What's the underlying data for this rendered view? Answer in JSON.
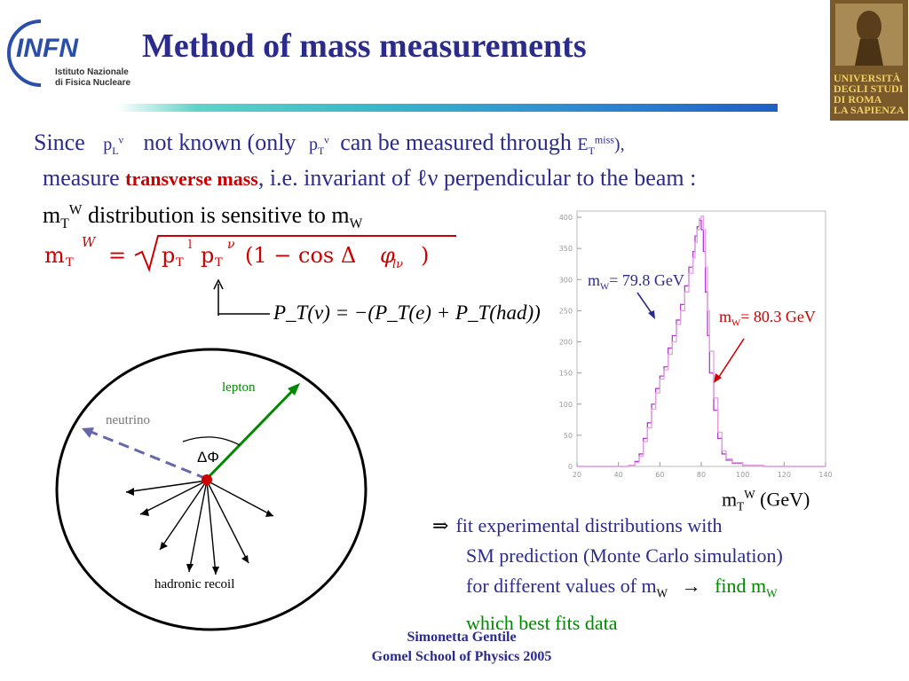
{
  "header": {
    "title": "Method of  mass measurements",
    "infn_logo_text": [
      "INFN",
      "Istituto Nazionale",
      "di Fisica Nucleare"
    ],
    "university_logo_text": [
      "UNIVERSITÀ",
      "DEGLI STUDI",
      "DI ROMA",
      "LA SAPIENZA"
    ]
  },
  "text": {
    "since": "Since",
    "not_known": "not known  (only",
    "can_be_measured": "can be measured through",
    "measure": "measure",
    "transverse_mass": "transverse mass",
    "invariant_rest": ", i.e. invariant of ℓν perpendicular to the beam :",
    "distribution_sensitive": "distribution is sensitive to m",
    "w": "W",
    "t": "T",
    "l": "L",
    "nu": "ν",
    "miss": "miss",
    "pt_formula": "P_T(ν) = −(P_T(e) + P_T(had))"
  },
  "formula": {
    "text": "m_T^W = sqrt( p_T^l p_T^ν (1 − cos Δφ_lν) )"
  },
  "diagram": {
    "lepton_label": "lepton",
    "neutrino_label": "neutrino",
    "delta_phi_label": "ΔΦ",
    "hadronic_label": "hadronic recoil",
    "colors": {
      "lepton": "#008800",
      "neutrino": "#6666aa",
      "vertex": "#cc0000"
    }
  },
  "chart_data": {
    "type": "line",
    "x_ticks": [
      20,
      40,
      60,
      80,
      100,
      120,
      140
    ],
    "y_ticks": [
      0,
      50,
      100,
      150,
      200,
      250,
      300,
      350,
      400
    ],
    "xlim": [
      20,
      140
    ],
    "ylim": [
      0,
      410
    ],
    "xlabel": "m_T^W (GeV)",
    "series": [
      {
        "name": "mW= 79.8 GeV",
        "color": "#b03bd0",
        "x": [
          20,
          40,
          45,
          48,
          50,
          52,
          54,
          56,
          58,
          60,
          62,
          64,
          66,
          68,
          70,
          72,
          74,
          76,
          77,
          78,
          79,
          80,
          81,
          82,
          83,
          84,
          86,
          88,
          90,
          92,
          95,
          100,
          110,
          140
        ],
        "y": [
          0,
          0,
          2,
          8,
          20,
          45,
          70,
          100,
          125,
          145,
          160,
          190,
          210,
          235,
          260,
          290,
          320,
          345,
          370,
          385,
          395,
          380,
          345,
          280,
          210,
          150,
          90,
          45,
          20,
          10,
          5,
          2,
          0,
          0
        ]
      },
      {
        "name": "mW= 80.3 GeV",
        "color": "#e5a0e0",
        "x": [
          20,
          40,
          45,
          48,
          50,
          52,
          54,
          56,
          58,
          60,
          62,
          64,
          66,
          68,
          70,
          72,
          74,
          76,
          77,
          78,
          79,
          80,
          81,
          82,
          83,
          84,
          86,
          88,
          90,
          92,
          95,
          100,
          110,
          140
        ],
        "y": [
          0,
          0,
          2,
          6,
          16,
          40,
          62,
          92,
          118,
          140,
          155,
          180,
          200,
          228,
          250,
          280,
          310,
          335,
          360,
          380,
          398,
          402,
          380,
          320,
          250,
          185,
          110,
          55,
          25,
          12,
          6,
          2,
          0,
          0
        ]
      }
    ],
    "annotations": [
      {
        "text_pre": "m",
        "text_sub": "W",
        "text_post": "= 79.8 GeV",
        "color": "#2b2b8c"
      },
      {
        "text_pre": "m",
        "text_sub": "W",
        "text_post": "= 80.3 GeV",
        "color": "#cc0000"
      }
    ]
  },
  "axis_label": {
    "pre": "m",
    "sub": "T",
    "sup": "W",
    "post": " (GeV)"
  },
  "fit": {
    "line1": "fit experimental distributions with",
    "line2": "SM prediction (Monte Carlo simulation)",
    "line3": "for different values of m",
    "find": "find m",
    "line4": "which best fits data"
  },
  "footer": {
    "author": "Simonetta Gentile",
    "event": "Gomel School of Physics 2005"
  }
}
